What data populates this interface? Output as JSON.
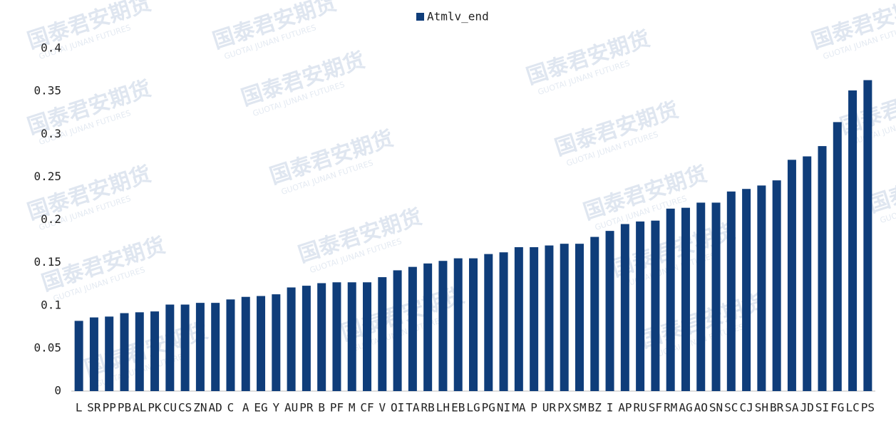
{
  "chart_data": {
    "type": "bar",
    "series": [
      {
        "name": "Atmlv_end",
        "color": "#0f3d7a",
        "values": [
          0.082,
          0.086,
          0.087,
          0.091,
          0.092,
          0.093,
          0.101,
          0.101,
          0.103,
          0.103,
          0.107,
          0.11,
          0.111,
          0.113,
          0.121,
          0.123,
          0.126,
          0.127,
          0.127,
          0.127,
          0.133,
          0.141,
          0.145,
          0.149,
          0.152,
          0.155,
          0.155,
          0.16,
          0.162,
          0.168,
          0.168,
          0.17,
          0.172,
          0.172,
          0.18,
          0.187,
          0.195,
          0.198,
          0.199,
          0.213,
          0.214,
          0.22,
          0.22,
          0.233,
          0.236,
          0.24,
          0.246,
          0.27,
          0.274,
          0.286,
          0.314,
          0.351,
          0.363
        ]
      }
    ],
    "categories": [
      "L",
      "SR",
      "PP",
      "PB",
      "AL",
      "PK",
      "CU",
      "CS",
      "ZN",
      "AD",
      "C",
      "A",
      "EG",
      "Y",
      "AU",
      "PR",
      "B",
      "PF",
      "M",
      "CF",
      "V",
      "OI",
      "TA",
      "RB",
      "LH",
      "EB",
      "LG",
      "PG",
      "NI",
      "MA",
      "P",
      "UR",
      "PX",
      "SM",
      "BZ",
      "I",
      "AP",
      "RU",
      "SF",
      "RM",
      "AG",
      "AO",
      "SN",
      "SC",
      "CJ",
      "SH",
      "BR",
      "SA",
      "JD",
      "SI",
      "FG",
      "LC",
      "PS"
    ],
    "ylim": [
      0,
      0.4
    ],
    "yticks": [
      0,
      0.05,
      0.1,
      0.15,
      0.2,
      0.25,
      0.3,
      0.35,
      0.4
    ],
    "grid": false,
    "legend": "top"
  },
  "watermark": {
    "text": "国泰君安期货",
    "subtext": "GUOTAI JUNAN FUTURES"
  }
}
